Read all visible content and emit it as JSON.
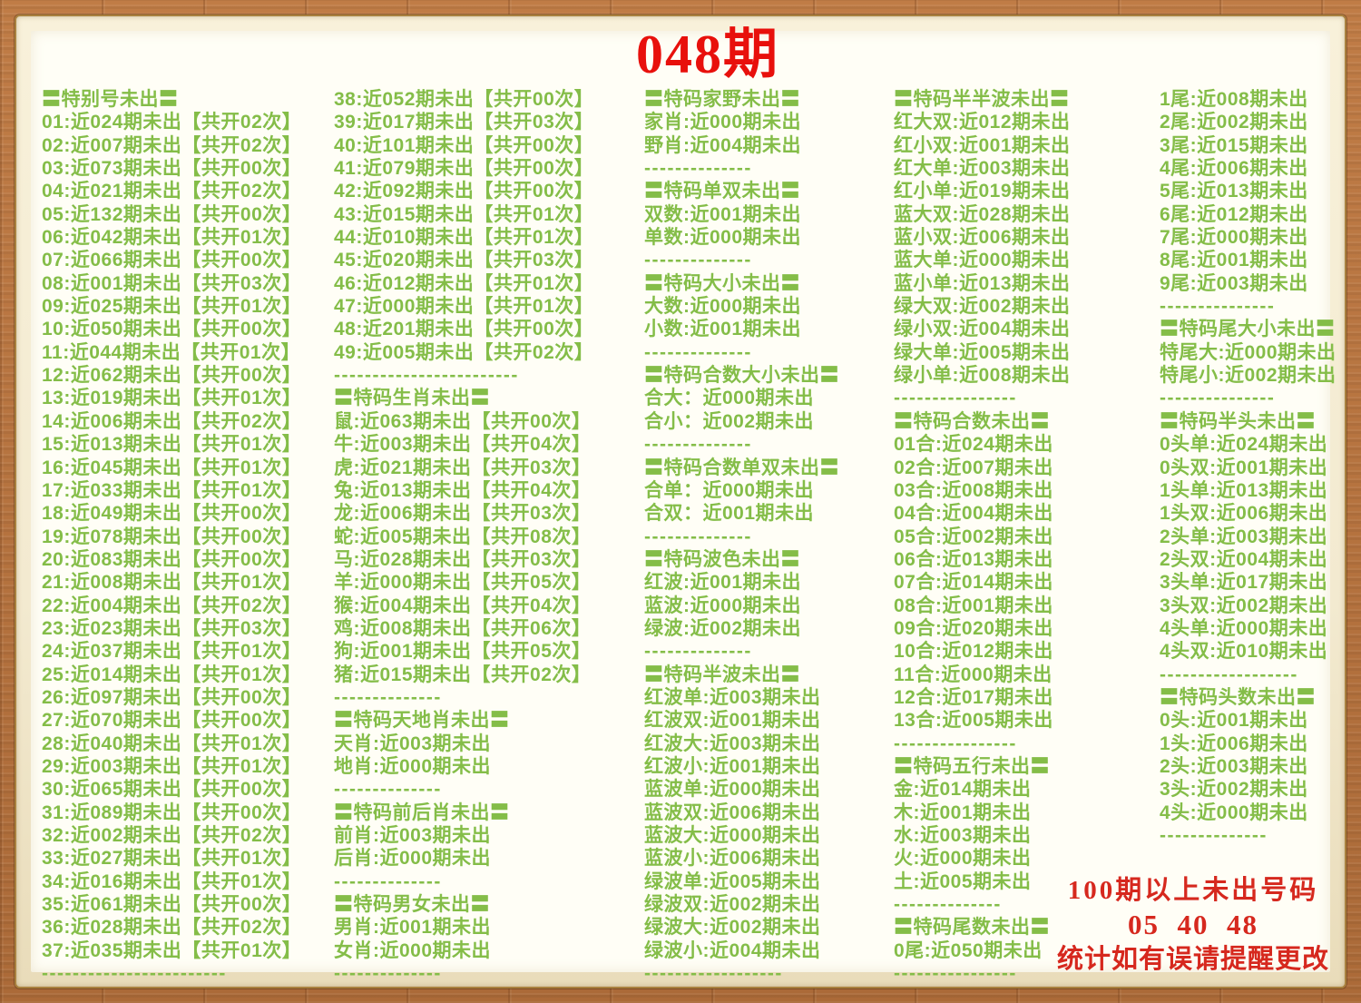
{
  "title": "048期",
  "footer": {
    "line1": "100期以上未出号码",
    "line2": "05  40  48",
    "line3": "统计如有误请提醒更改"
  },
  "colors": {
    "text_green": "#84bd48",
    "title_red": "#e8100c",
    "footer_red": "#d6281e",
    "wood_frame": "#b5723e",
    "cream_mat": "#f3ead0",
    "paper": "#fffef6"
  },
  "columns": [
    {
      "lines": [
        "〓特别号未出〓",
        "01:近024期未出【共开02次】",
        "02:近007期未出【共开02次】",
        "03:近073期未出【共开00次】",
        "04:近021期未出【共开02次】",
        "05:近132期未出【共开00次】",
        "06:近042期未出【共开01次】",
        "07:近066期未出【共开00次】",
        "08:近001期未出【共开03次】",
        "09:近025期未出【共开01次】",
        "10:近050期未出【共开00次】",
        "11:近044期未出【共开01次】",
        "12:近062期未出【共开00次】",
        "13:近019期未出【共开01次】",
        "14:近006期未出【共开02次】",
        "15:近013期未出【共开01次】",
        "16:近045期未出【共开01次】",
        "17:近033期未出【共开01次】",
        "18:近049期未出【共开00次】",
        "19:近078期未出【共开00次】",
        "20:近083期未出【共开00次】",
        "21:近008期未出【共开01次】",
        "22:近004期未出【共开02次】",
        "23:近023期未出【共开03次】",
        "24:近037期未出【共开01次】",
        "25:近014期未出【共开01次】",
        "26:近097期未出【共开00次】",
        "27:近070期未出【共开00次】",
        "28:近040期未出【共开01次】",
        "29:近003期未出【共开01次】",
        "30:近065期未出【共开00次】",
        "31:近089期未出【共开00次】",
        "32:近002期未出【共开02次】",
        "33:近027期未出【共开01次】",
        "34:近016期未出【共开01次】",
        "35:近061期未出【共开00次】",
        "36:近028期未出【共开02次】",
        "37:近035期未出【共开01次】",
        "------------------------"
      ]
    },
    {
      "lines": [
        "38:近052期未出【共开00次】",
        "39:近017期未出【共开03次】",
        "40:近101期未出【共开00次】",
        "41:近079期未出【共开00次】",
        "42:近092期未出【共开00次】",
        "43:近015期未出【共开01次】",
        "44:近010期未出【共开01次】",
        "45:近020期未出【共开03次】",
        "46:近012期未出【共开01次】",
        "47:近000期未出【共开01次】",
        "48:近201期未出【共开00次】",
        "49:近005期未出【共开02次】",
        "------------------------",
        "〓特码生肖未出〓",
        "鼠:近063期未出【共开00次】",
        "牛:近003期未出【共开04次】",
        "虎:近021期未出【共开03次】",
        "兔:近013期未出【共开04次】",
        "龙:近006期未出【共开03次】",
        "蛇:近005期未出【共开08次】",
        "马:近028期未出【共开03次】",
        "羊:近000期未出【共开05次】",
        "猴:近004期未出【共开04次】",
        "鸡:近008期未出【共开06次】",
        "狗:近001期未出【共开05次】",
        "猪:近015期未出【共开02次】",
        "--------------",
        "〓特码天地肖未出〓",
        "天肖:近003期未出",
        "地肖:近000期未出",
        "--------------",
        "〓特码前后肖未出〓",
        "前肖:近003期未出",
        "后肖:近000期未出",
        "--------------",
        "〓特码男女未出〓",
        "男肖:近001期未出",
        "女肖:近000期未出",
        "--------------"
      ]
    },
    {
      "lines": [
        "〓特码家野未出〓",
        "家肖:近000期未出",
        "野肖:近004期未出",
        "--------------",
        "〓特码单双未出〓",
        "双数:近001期未出",
        "单数:近000期未出",
        "--------------",
        "〓特码大小未出〓",
        "大数:近000期未出",
        "小数:近001期未出",
        "--------------",
        "〓特码合数大小未出〓",
        "合大：近000期未出",
        "合小：近002期未出",
        "--------------",
        "〓特码合数单双未出〓",
        "合单：近000期未出",
        "合双：近001期未出",
        "--------------",
        "〓特码波色未出〓",
        "红波:近001期未出",
        "蓝波:近000期未出",
        "绿波:近002期未出",
        "--------------",
        "〓特码半波未出〓",
        "红波单:近003期未出",
        "红波双:近001期未出",
        "红波大:近003期未出",
        "红波小:近001期未出",
        "蓝波单:近000期未出",
        "蓝波双:近006期未出",
        "蓝波大:近000期未出",
        "蓝波小:近006期未出",
        "绿波单:近005期未出",
        "绿波双:近002期未出",
        "绿波大:近002期未出",
        "绿波小:近004期未出",
        "------------------"
      ]
    },
    {
      "lines": [
        "〓特码半半波未出〓",
        "红大双:近012期未出",
        "红小双:近001期未出",
        "红大单:近003期未出",
        "红小单:近019期未出",
        "蓝大双:近028期未出",
        "蓝小双:近006期未出",
        "蓝大单:近000期未出",
        "蓝小单:近013期未出",
        "绿大双:近002期未出",
        "绿小双:近004期未出",
        "绿大单:近005期未出",
        "绿小单:近008期未出",
        "----------------",
        "〓特码合数未出〓",
        "01合:近024期未出",
        "02合:近007期未出",
        "03合:近008期未出",
        "04合:近004期未出",
        "05合:近002期未出",
        "06合:近013期未出",
        "07合:近014期未出",
        "08合:近001期未出",
        "09合:近020期未出",
        "10合:近012期未出",
        "11合:近000期未出",
        "12合:近017期未出",
        "13合:近005期未出",
        "----------------",
        "〓特码五行未出〓",
        "金:近014期未出",
        "木:近001期未出",
        "水:近003期未出",
        "火:近000期未出",
        "土:近005期未出",
        "--------------",
        "〓特码尾数未出〓",
        "0尾:近050期未出",
        "----------------"
      ]
    },
    {
      "lines": [
        "1尾:近008期未出",
        "2尾:近002期未出",
        "3尾:近015期未出",
        "4尾:近006期未出",
        "5尾:近013期未出",
        "6尾:近012期未出",
        "7尾:近000期未出",
        "8尾:近001期未出",
        "9尾:近003期未出",
        "---------------",
        "〓特码尾大小未出〓",
        "特尾大:近000期未出",
        "特尾小:近002期未出",
        "---------------",
        "〓特码半头未出〓",
        "0头单:近024期未出",
        "0头双:近001期未出",
        "1头单:近013期未出",
        "1头双:近006期未出",
        "2头单:近003期未出",
        "2头双:近004期未出",
        "3头单:近017期未出",
        "3头双:近002期未出",
        "4头单:近000期未出",
        "4头双:近010期未出",
        "------------------",
        "〓特码头数未出〓",
        "0头:近001期未出",
        "1头:近006期未出",
        "2头:近003期未出",
        "3头:近002期未出",
        "4头:近000期未出",
        "--------------"
      ]
    }
  ]
}
